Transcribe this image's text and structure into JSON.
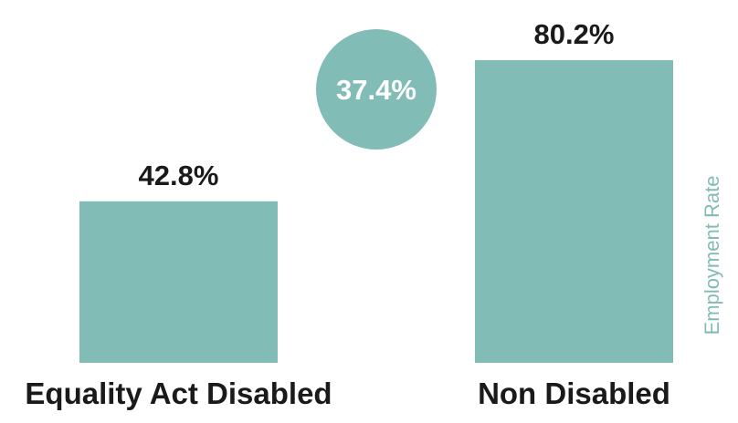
{
  "chart_data": {
    "type": "bar",
    "categories": [
      "Equality Act Disabled",
      "Non Disabled"
    ],
    "values": [
      42.8,
      80.2
    ],
    "value_labels": [
      "42.8%",
      "80.2%"
    ],
    "ylabel": "Employment Rate",
    "ylim": [
      0,
      100
    ],
    "grid": false,
    "annotations": [
      {
        "text": "37.4%",
        "value": 37.4,
        "shape": "circle"
      }
    ],
    "colors": {
      "bar": "#82bcb7",
      "circle": "#82bcb7",
      "circle_text": "#ffffff",
      "label_text": "#1a1a1a",
      "axis_label": "#82bcb7"
    }
  }
}
